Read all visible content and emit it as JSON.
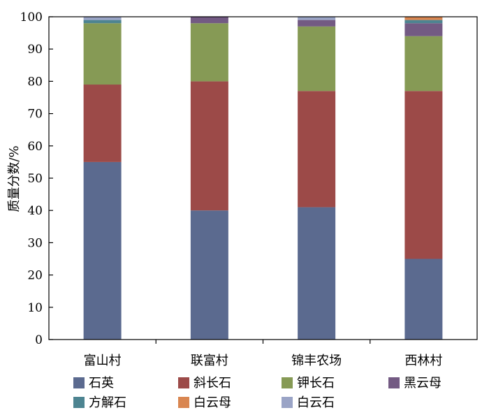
{
  "chart_data": {
    "type": "bar",
    "stacked": true,
    "title": "",
    "xlabel": "",
    "ylabel": "质量分数/%",
    "ylim": [
      0,
      100
    ],
    "yticks": [
      0,
      10,
      20,
      30,
      40,
      50,
      60,
      70,
      80,
      90,
      100
    ],
    "grid": false,
    "legend_position": "bottom",
    "categories": [
      "富山村",
      "联富村",
      "锦丰农场",
      "西林村"
    ],
    "series": [
      {
        "name": "石英",
        "color": "#5b6a8f",
        "values": [
          55,
          40,
          41,
          25
        ]
      },
      {
        "name": "斜长石",
        "color": "#9c4a48",
        "values": [
          24,
          40,
          36,
          52
        ]
      },
      {
        "name": "钾长石",
        "color": "#869a55",
        "values": [
          19,
          18,
          20,
          17
        ]
      },
      {
        "name": "黑云母",
        "color": "#735a83",
        "values": [
          0,
          2,
          2,
          4
        ]
      },
      {
        "name": "方解石",
        "color": "#4d8491",
        "values": [
          1,
          0,
          0,
          1
        ]
      },
      {
        "name": "白云母",
        "color": "#d98651",
        "values": [
          0,
          0,
          0,
          1
        ]
      },
      {
        "name": "白云石",
        "color": "#9aa4c6",
        "values": [
          1,
          0,
          1,
          0
        ]
      }
    ]
  }
}
